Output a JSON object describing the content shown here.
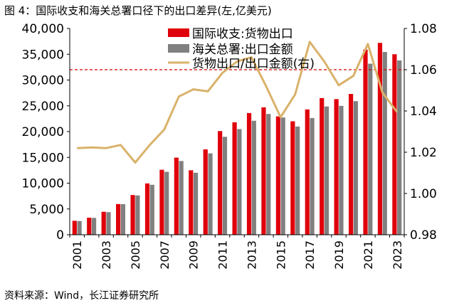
{
  "figure": {
    "title": "图 4：国际收支和海关总署口径下的出口差异(左,亿美元)",
    "source": "资料来源：Wind，长江证券研究所"
  },
  "colors": {
    "bop": "#e0000b",
    "customs": "#808080",
    "ratio": "#d9b26a",
    "refline": "#d40000",
    "axis": "#000000"
  },
  "chart_data": {
    "type": "bar",
    "categories": [
      "2001",
      "2002",
      "2003",
      "2004",
      "2005",
      "2006",
      "2007",
      "2008",
      "2009",
      "2010",
      "2011",
      "2012",
      "2013",
      "2014",
      "2015",
      "2016",
      "2017",
      "2018",
      "2019",
      "2020",
      "2021",
      "2022",
      "2023"
    ],
    "x_tick_labels": [
      "2001",
      "2003",
      "2005",
      "2007",
      "2009",
      "2011",
      "2013",
      "2015",
      "2017",
      "2019",
      "2021",
      "2023"
    ],
    "series": [
      {
        "name": "国际收支:货物出口",
        "axis": "left",
        "kind": "bar",
        "values": [
          2700,
          3300,
          4450,
          5950,
          7700,
          9950,
          12600,
          14950,
          12500,
          16550,
          20100,
          21800,
          23600,
          24700,
          22950,
          22000,
          24300,
          26500,
          26300,
          27300,
          35900,
          37200,
          35000
        ]
      },
      {
        "name": "海关总署:出口金额",
        "axis": "left",
        "kind": "bar",
        "values": [
          2660,
          3260,
          4380,
          5930,
          7620,
          9690,
          12200,
          14300,
          12020,
          15780,
          18990,
          20490,
          22100,
          23420,
          22730,
          20980,
          22630,
          24870,
          24990,
          25900,
          33160,
          35440,
          33800
        ]
      },
      {
        "name": "货物出口/出口金额(右)",
        "axis": "right",
        "kind": "line",
        "values": [
          1.022,
          1.0223,
          1.022,
          1.0235,
          1.015,
          1.0235,
          1.031,
          1.047,
          1.0505,
          1.0495,
          1.0585,
          1.064,
          1.066,
          1.052,
          1.037,
          1.048,
          1.0735,
          1.064,
          1.0525,
          1.057,
          1.0725,
          1.049,
          1.0395
        ]
      }
    ],
    "y_left": {
      "lim": [
        0,
        40000
      ],
      "ticks": [
        "0",
        "5,000",
        "10,000",
        "15,000",
        "20,000",
        "25,000",
        "30,000",
        "35,000",
        "40,000"
      ],
      "tick_values": [
        0,
        5000,
        10000,
        15000,
        20000,
        25000,
        30000,
        35000,
        40000
      ]
    },
    "y_right": {
      "lim": [
        0.98,
        1.08
      ],
      "ticks": [
        "0.98",
        "1.00",
        "1.02",
        "1.04",
        "1.06",
        "1.08"
      ],
      "tick_values": [
        0.98,
        1.0,
        1.02,
        1.04,
        1.06,
        1.08
      ]
    },
    "reference_line": {
      "axis": "right",
      "value": 1.06,
      "style": "dashed"
    },
    "legend": {
      "position": "top-right",
      "labels": [
        "国际收支:货物出口",
        "海关总署:出口金额",
        "货物出口/出口金额(右)"
      ]
    }
  }
}
